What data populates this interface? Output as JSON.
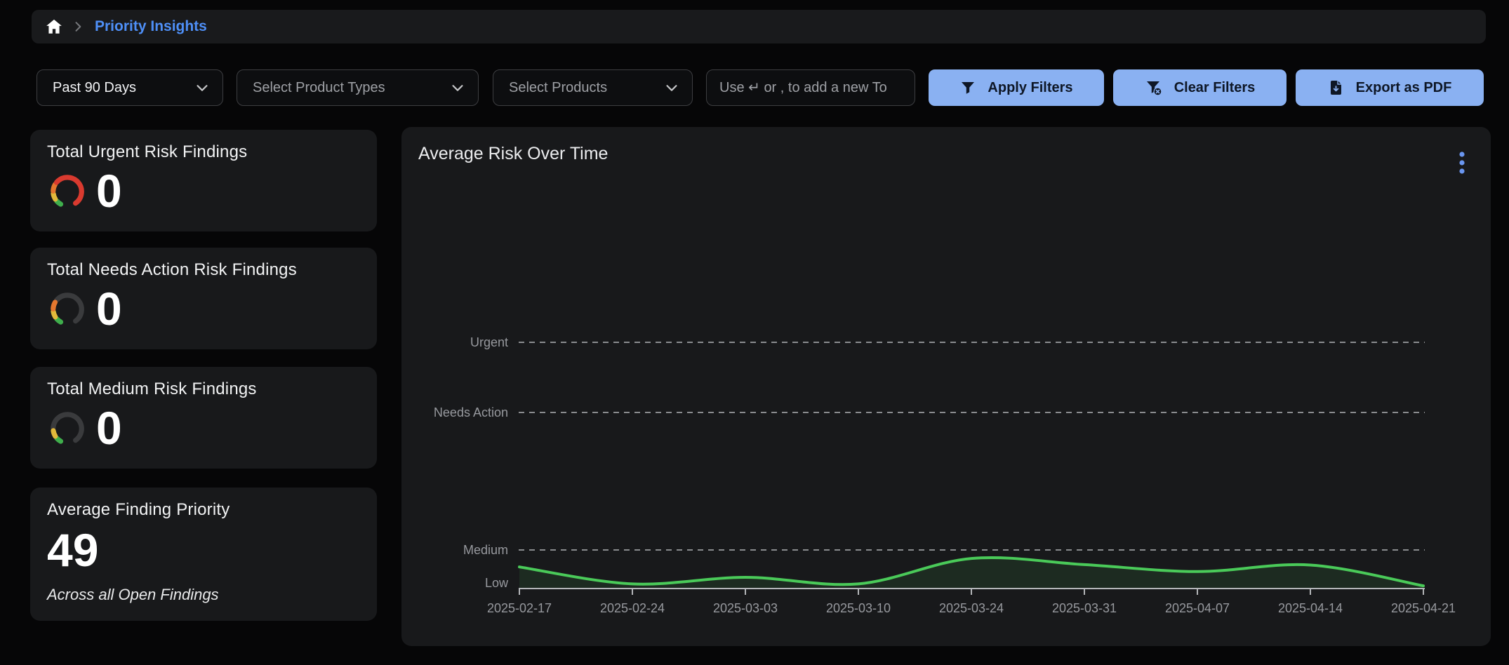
{
  "palette": {
    "accent_blue": "#4e8ff7",
    "button_bg": "#8ab1f2",
    "button_text": "#0e1726",
    "line_green": "#4aca59",
    "area_green": "rgba(74,202,90,0.10)",
    "gauge_green": "#3fae4c",
    "gauge_yellow": "#e2b93b",
    "gauge_orange": "#e4772e",
    "gauge_red": "#d93a2f",
    "gauge_track": "#3a3b3d",
    "card_bg": "#18191b",
    "page_bg": "#060607"
  },
  "breadcrumb": {
    "home_icon": "home-icon",
    "separator_icon": "chevron-right-icon",
    "page_title": "Priority Insights"
  },
  "filters": {
    "time_range_value": "Past 90 Days",
    "product_types_placeholder": "Select Product Types",
    "products_placeholder": "Select Products",
    "tag_input_placeholder": "Use ↵ or , to add a new To",
    "apply_label": "Apply Filters",
    "apply_icon": "filter-icon",
    "clear_label": "Clear Filters",
    "clear_icon": "filter-x-icon",
    "export_label": "Export as PDF",
    "export_icon": "file-download-icon"
  },
  "stat_cards": [
    {
      "title": "Total Urgent Risk Findings",
      "value": "0",
      "icon": "gauge-high-icon"
    },
    {
      "title": "Total Needs Action Risk Findings",
      "value": "0",
      "icon": "gauge-medium-icon"
    },
    {
      "title": "Total Medium Risk Findings",
      "value": "0",
      "icon": "gauge-low-icon"
    }
  ],
  "average_card": {
    "title": "Average Finding Priority",
    "value": "49",
    "subtitle": "Across all Open Findings"
  },
  "chart": {
    "title": "Average Risk Over Time",
    "menu_icon": "kebab-menu-icon"
  },
  "chart_data": {
    "type": "line",
    "title": "Average Risk Over Time",
    "x": [
      "2025-02-17",
      "2025-02-24",
      "2025-03-03",
      "2025-03-10",
      "2025-03-24",
      "2025-03-31",
      "2025-04-07",
      "2025-04-14",
      "2025-04-21"
    ],
    "values": [
      0.56,
      0.12,
      0.29,
      0.12,
      0.78,
      0.62,
      0.44,
      0.61,
      0.07
    ],
    "value_scale": "fraction of the distance from the Low gridline (0) to the Medium gridline (1)",
    "y_axis_labels": [
      "Urgent",
      "Needs Action",
      "Medium",
      "Low"
    ],
    "y_gridlines_dashed": [
      "Urgent",
      "Needs Action",
      "Medium"
    ],
    "line_color": "#4aca59",
    "fill": "translucent green area under line",
    "grid": "horizontal dashed",
    "legend": "none"
  }
}
